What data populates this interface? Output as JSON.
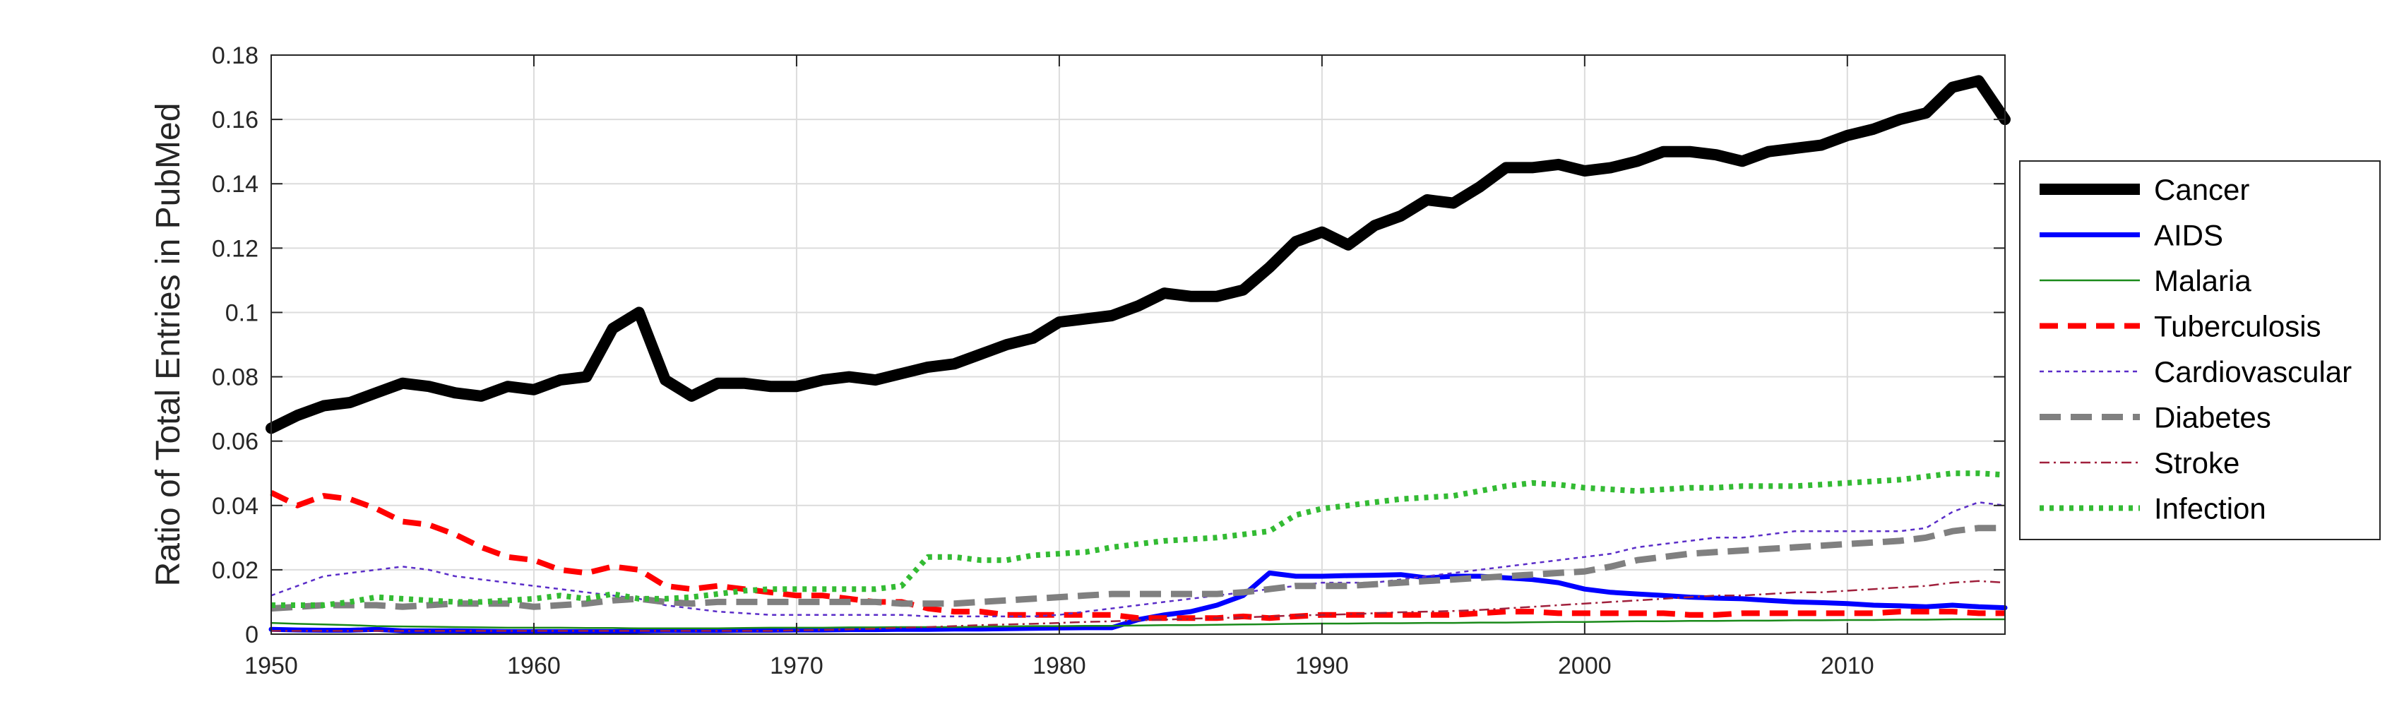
{
  "chart_data": {
    "type": "line",
    "title": "",
    "xlabel": "",
    "ylabel": "Ratio of Total Entries in PubMed",
    "xlim": [
      1950,
      2016
    ],
    "ylim": [
      0,
      0.18
    ],
    "xticks": [
      1950,
      1960,
      1970,
      1980,
      1990,
      2000,
      2010
    ],
    "xtick_labels": [
      "1950",
      "1960",
      "1970",
      "1980",
      "1990",
      "2000",
      "2010"
    ],
    "yticks": [
      0,
      0.02,
      0.04,
      0.06,
      0.08,
      0.1,
      0.12,
      0.14,
      0.16,
      0.18
    ],
    "ytick_labels": [
      "0",
      "0.02",
      "0.04",
      "0.06",
      "0.08",
      "0.1",
      "0.12",
      "0.14",
      "0.16",
      "0.18"
    ],
    "grid": true,
    "legend_position": "outside-right",
    "x": [
      1950,
      1951,
      1952,
      1953,
      1954,
      1955,
      1956,
      1957,
      1958,
      1959,
      1960,
      1961,
      1962,
      1963,
      1964,
      1965,
      1966,
      1967,
      1968,
      1969,
      1970,
      1971,
      1972,
      1973,
      1974,
      1975,
      1976,
      1977,
      1978,
      1979,
      1980,
      1981,
      1982,
      1983,
      1984,
      1985,
      1986,
      1987,
      1988,
      1989,
      1990,
      1991,
      1992,
      1993,
      1994,
      1995,
      1996,
      1997,
      1998,
      1999,
      2000,
      2001,
      2002,
      2003,
      2004,
      2005,
      2006,
      2007,
      2008,
      2009,
      2010,
      2011,
      2012,
      2013,
      2014,
      2015,
      2016
    ],
    "series": [
      {
        "name": "Cancer",
        "color": "#000000",
        "style": "solid-thick",
        "values": [
          0.064,
          0.068,
          0.071,
          0.072,
          0.075,
          0.078,
          0.077,
          0.075,
          0.074,
          0.077,
          0.076,
          0.079,
          0.08,
          0.095,
          0.1,
          0.079,
          0.074,
          0.078,
          0.078,
          0.077,
          0.077,
          0.079,
          0.08,
          0.079,
          0.081,
          0.083,
          0.084,
          0.087,
          0.09,
          0.092,
          0.097,
          0.098,
          0.099,
          0.102,
          0.106,
          0.105,
          0.105,
          0.107,
          0.114,
          0.122,
          0.125,
          0.121,
          0.127,
          0.13,
          0.135,
          0.134,
          0.139,
          0.145,
          0.145,
          0.146,
          0.144,
          0.145,
          0.147,
          0.15,
          0.15,
          0.149,
          0.147,
          0.15,
          0.151,
          0.152,
          0.155,
          0.157,
          0.16,
          0.162,
          0.17,
          0.172,
          0.16
        ]
      },
      {
        "name": "AIDS",
        "color": "#0000ff",
        "style": "solid",
        "values": [
          0.0015,
          0.0013,
          0.0012,
          0.0012,
          0.0015,
          0.001,
          0.001,
          0.001,
          0.0009,
          0.0008,
          0.0008,
          0.0008,
          0.0008,
          0.0008,
          0.001,
          0.0011,
          0.0011,
          0.0011,
          0.0012,
          0.0012,
          0.0013,
          0.0013,
          0.0014,
          0.0014,
          0.0015,
          0.0015,
          0.0016,
          0.0016,
          0.0017,
          0.0018,
          0.0019,
          0.002,
          0.002,
          0.0045,
          0.006,
          0.007,
          0.009,
          0.012,
          0.019,
          0.018,
          0.018,
          0.0182,
          0.0183,
          0.0185,
          0.0175,
          0.018,
          0.018,
          0.0175,
          0.017,
          0.016,
          0.014,
          0.013,
          0.0125,
          0.012,
          0.0115,
          0.0112,
          0.011,
          0.0105,
          0.01,
          0.0098,
          0.0095,
          0.009,
          0.0088,
          0.0085,
          0.009,
          0.0085,
          0.0082
        ]
      },
      {
        "name": "Malaria",
        "color": "#1a8a1a",
        "style": "solid-thin",
        "values": [
          0.0035,
          0.0032,
          0.003,
          0.0028,
          0.0025,
          0.0024,
          0.0023,
          0.0022,
          0.0021,
          0.002,
          0.002,
          0.002,
          0.0019,
          0.0019,
          0.0018,
          0.0018,
          0.0018,
          0.0018,
          0.0019,
          0.002,
          0.002,
          0.002,
          0.0021,
          0.0021,
          0.0022,
          0.0022,
          0.0022,
          0.0023,
          0.0024,
          0.0025,
          0.0025,
          0.0026,
          0.0026,
          0.0027,
          0.0028,
          0.0028,
          0.0029,
          0.003,
          0.0031,
          0.0032,
          0.0033,
          0.0033,
          0.0034,
          0.0034,
          0.0035,
          0.0035,
          0.0036,
          0.0036,
          0.0037,
          0.0038,
          0.0038,
          0.0039,
          0.004,
          0.004,
          0.0041,
          0.0041,
          0.0042,
          0.0042,
          0.0043,
          0.0043,
          0.0044,
          0.0044,
          0.0045,
          0.0045,
          0.0046,
          0.0046,
          0.0046
        ]
      },
      {
        "name": "Tuberculosis",
        "color": "#ff0000",
        "style": "dashed",
        "values": [
          0.044,
          0.04,
          0.043,
          0.042,
          0.039,
          0.035,
          0.034,
          0.031,
          0.027,
          0.024,
          0.023,
          0.02,
          0.019,
          0.021,
          0.02,
          0.015,
          0.014,
          0.015,
          0.014,
          0.013,
          0.012,
          0.012,
          0.011,
          0.01,
          0.01,
          0.008,
          0.007,
          0.007,
          0.006,
          0.006,
          0.006,
          0.006,
          0.006,
          0.005,
          0.005,
          0.005,
          0.005,
          0.0055,
          0.005,
          0.0055,
          0.006,
          0.006,
          0.006,
          0.006,
          0.006,
          0.006,
          0.0065,
          0.007,
          0.007,
          0.0065,
          0.0065,
          0.0065,
          0.0065,
          0.0065,
          0.006,
          0.006,
          0.0065,
          0.0065,
          0.0065,
          0.0065,
          0.0065,
          0.0065,
          0.007,
          0.007,
          0.007,
          0.0065,
          0.0065
        ]
      },
      {
        "name": "Cardiovascular",
        "color": "#5a2dc8",
        "style": "dotted-thin",
        "values": [
          0.012,
          0.015,
          0.018,
          0.019,
          0.02,
          0.021,
          0.02,
          0.018,
          0.017,
          0.016,
          0.015,
          0.014,
          0.013,
          0.012,
          0.011,
          0.009,
          0.008,
          0.007,
          0.0065,
          0.006,
          0.006,
          0.006,
          0.006,
          0.006,
          0.006,
          0.0055,
          0.0055,
          0.0055,
          0.0055,
          0.0055,
          0.006,
          0.007,
          0.008,
          0.009,
          0.01,
          0.011,
          0.012,
          0.013,
          0.014,
          0.015,
          0.016,
          0.016,
          0.016,
          0.017,
          0.018,
          0.019,
          0.02,
          0.021,
          0.022,
          0.023,
          0.024,
          0.025,
          0.027,
          0.028,
          0.029,
          0.03,
          0.03,
          0.031,
          0.032,
          0.032,
          0.032,
          0.032,
          0.032,
          0.033,
          0.038,
          0.041,
          0.04
        ]
      },
      {
        "name": "Diabetes",
        "color": "#808080",
        "style": "dashed-thick",
        "values": [
          0.008,
          0.0085,
          0.009,
          0.009,
          0.009,
          0.0085,
          0.009,
          0.0095,
          0.0095,
          0.0095,
          0.0085,
          0.009,
          0.0095,
          0.0105,
          0.011,
          0.01,
          0.0095,
          0.01,
          0.01,
          0.01,
          0.01,
          0.01,
          0.01,
          0.01,
          0.0095,
          0.0095,
          0.0095,
          0.01,
          0.0105,
          0.011,
          0.0115,
          0.012,
          0.0125,
          0.0125,
          0.0125,
          0.0125,
          0.0125,
          0.013,
          0.014,
          0.015,
          0.015,
          0.015,
          0.0155,
          0.016,
          0.0165,
          0.017,
          0.0175,
          0.018,
          0.0185,
          0.019,
          0.0195,
          0.021,
          0.023,
          0.024,
          0.025,
          0.0255,
          0.026,
          0.0265,
          0.027,
          0.0275,
          0.028,
          0.0285,
          0.029,
          0.03,
          0.032,
          0.033,
          0.033
        ]
      },
      {
        "name": "Stroke",
        "color": "#a0203c",
        "style": "dashdot-thin",
        "values": [
          0.001,
          0.001,
          0.001,
          0.001,
          0.001,
          0.001,
          0.001,
          0.001,
          0.001,
          0.001,
          0.001,
          0.001,
          0.001,
          0.001,
          0.001,
          0.001,
          0.001,
          0.001,
          0.001,
          0.001,
          0.0012,
          0.0013,
          0.0015,
          0.0017,
          0.002,
          0.0022,
          0.0025,
          0.0028,
          0.003,
          0.0032,
          0.0035,
          0.0038,
          0.004,
          0.0043,
          0.0045,
          0.0048,
          0.005,
          0.0052,
          0.0055,
          0.0058,
          0.006,
          0.0062,
          0.0065,
          0.0068,
          0.007,
          0.0072,
          0.0075,
          0.008,
          0.0085,
          0.009,
          0.0095,
          0.01,
          0.0105,
          0.011,
          0.0115,
          0.012,
          0.012,
          0.0125,
          0.013,
          0.013,
          0.0135,
          0.014,
          0.0145,
          0.015,
          0.016,
          0.0165,
          0.016
        ]
      },
      {
        "name": "Infection",
        "color": "#33bb33",
        "style": "dotted-thick",
        "values": [
          0.009,
          0.009,
          0.009,
          0.01,
          0.0115,
          0.011,
          0.0105,
          0.01,
          0.01,
          0.0105,
          0.011,
          0.012,
          0.011,
          0.0125,
          0.011,
          0.011,
          0.0115,
          0.0125,
          0.0135,
          0.014,
          0.014,
          0.014,
          0.014,
          0.014,
          0.015,
          0.024,
          0.024,
          0.023,
          0.023,
          0.0245,
          0.025,
          0.0255,
          0.027,
          0.028,
          0.029,
          0.0295,
          0.03,
          0.031,
          0.032,
          0.037,
          0.039,
          0.04,
          0.041,
          0.042,
          0.0425,
          0.043,
          0.0445,
          0.046,
          0.047,
          0.0465,
          0.0455,
          0.045,
          0.0445,
          0.045,
          0.0455,
          0.0455,
          0.046,
          0.046,
          0.046,
          0.0465,
          0.047,
          0.0475,
          0.048,
          0.049,
          0.05,
          0.05,
          0.0495
        ]
      }
    ]
  }
}
